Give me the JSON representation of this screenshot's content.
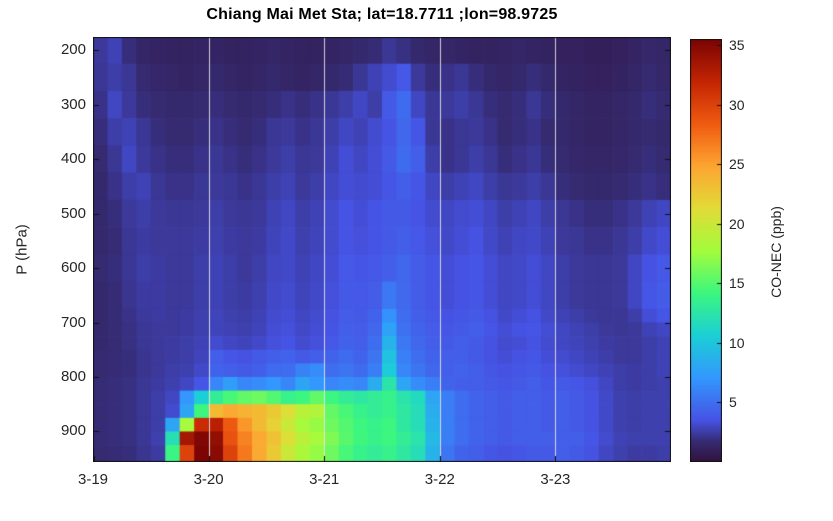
{
  "title": "Chiang Mai Met Sta; lat=18.7711 ;lon=98.9725",
  "colors": {
    "background": "#ffffff",
    "axis_box": "#111111",
    "tick_text": "#262626",
    "title_text": "#000000",
    "gridline": "rgba(228,228,228,0.9)"
  },
  "chart_data": {
    "type": "heatmap",
    "title": "Chiang Mai Met Sta; lat=18.7711 ;lon=98.9725",
    "xlabel": "",
    "ylabel": "P (hPa)",
    "colorbar_label": "CO-NEC (ppb)",
    "x_tick_labels": [
      "3-19",
      "3-20",
      "3-21",
      "3-22",
      "3-23"
    ],
    "x_cols_per_day": 8,
    "x_gridline_days": [
      1,
      2,
      3,
      4
    ],
    "y_ticks": [
      200,
      300,
      400,
      500,
      600,
      700,
      800,
      900
    ],
    "p_top": 176,
    "p_bottom": 956,
    "clim": [
      0,
      35.5
    ],
    "colorbar_ticks": [
      5,
      10,
      15,
      20,
      25,
      30,
      35
    ],
    "colormap": "turbo",
    "colormap_stops": [
      [
        0.0,
        48,
        18,
        59
      ],
      [
        0.05,
        54,
        43,
        115
      ],
      [
        0.1,
        70,
        83,
        229
      ],
      [
        0.2,
        51,
        151,
        254
      ],
      [
        0.3,
        27,
        208,
        213
      ],
      [
        0.4,
        60,
        246,
        127
      ],
      [
        0.5,
        163,
        252,
        60
      ],
      [
        0.6,
        225,
        220,
        55
      ],
      [
        0.7,
        253,
        165,
        49
      ],
      [
        0.8,
        239,
        91,
        17
      ],
      [
        0.9,
        196,
        37,
        3
      ],
      [
        1.0,
        122,
        4,
        3
      ]
    ],
    "row_edges_hpa": [
      176,
      225,
      275,
      325,
      375,
      425,
      475,
      525,
      575,
      625,
      675,
      700,
      725,
      750,
      775,
      800,
      825,
      850,
      875,
      900,
      925,
      956
    ],
    "values": [
      [
        2.4,
        2.8,
        1.9,
        1.4,
        1.3,
        1.2,
        1.2,
        1.3,
        1.3,
        1.2,
        1.2,
        1.3,
        1.4,
        1.3,
        1.2,
        1.2,
        1.3,
        1.4,
        1.6,
        1.8,
        2.3,
        2.0,
        1.6,
        1.4,
        1.4,
        1.3,
        1.2,
        1.2,
        1.3,
        1.4,
        1.3,
        1.2,
        1.1,
        1.1,
        1.0,
        1.0,
        1.1,
        1.3,
        1.5,
        1.4
      ],
      [
        2.3,
        2.6,
        2.3,
        1.7,
        1.5,
        1.4,
        1.3,
        1.4,
        1.6,
        1.4,
        1.3,
        1.4,
        1.6,
        1.4,
        1.3,
        1.4,
        1.6,
        1.8,
        2.3,
        2.8,
        3.2,
        3.8,
        2.4,
        1.9,
        2.1,
        2.3,
        1.9,
        1.6,
        1.4,
        1.6,
        1.9,
        1.6,
        1.3,
        1.2,
        1.1,
        1.1,
        1.2,
        1.4,
        1.7,
        1.5
      ],
      [
        2.1,
        3.0,
        2.4,
        1.9,
        1.7,
        1.6,
        1.6,
        1.7,
        1.9,
        1.7,
        1.6,
        1.7,
        1.9,
        2.1,
        1.9,
        2.1,
        2.3,
        2.6,
        3.0,
        2.6,
        3.9,
        4.8,
        3.0,
        2.3,
        2.4,
        2.6,
        2.3,
        1.9,
        1.7,
        1.9,
        2.3,
        1.9,
        1.6,
        1.4,
        1.3,
        1.3,
        1.4,
        1.6,
        1.9,
        1.7
      ],
      [
        1.9,
        2.6,
        2.8,
        2.3,
        1.9,
        1.7,
        1.7,
        1.9,
        2.1,
        1.9,
        1.7,
        1.9,
        2.3,
        2.4,
        2.1,
        2.3,
        2.6,
        3.0,
        2.8,
        3.2,
        3.6,
        4.6,
        3.7,
        2.3,
        2.1,
        2.3,
        2.4,
        2.1,
        1.7,
        1.9,
        2.1,
        1.7,
        1.6,
        1.4,
        1.3,
        1.3,
        1.4,
        1.6,
        1.7,
        1.6
      ],
      [
        1.7,
        2.3,
        3.0,
        2.4,
        2.1,
        1.9,
        1.9,
        2.1,
        2.3,
        2.1,
        1.9,
        2.1,
        2.4,
        2.6,
        2.3,
        2.4,
        2.8,
        3.3,
        3.0,
        3.3,
        3.9,
        4.8,
        4.1,
        2.6,
        2.1,
        2.3,
        2.6,
        2.3,
        1.9,
        2.1,
        2.3,
        1.9,
        1.7,
        1.5,
        1.4,
        1.4,
        1.5,
        1.7,
        1.9,
        1.7
      ],
      [
        1.6,
        2.1,
        2.6,
        2.8,
        2.3,
        2.1,
        2.1,
        2.3,
        2.4,
        2.3,
        2.1,
        2.3,
        2.6,
        2.8,
        2.4,
        2.6,
        3.0,
        3.3,
        3.2,
        3.3,
        3.7,
        4.1,
        3.7,
        3.0,
        2.6,
        2.8,
        3.0,
        2.6,
        2.3,
        2.4,
        2.6,
        2.3,
        1.9,
        1.7,
        1.6,
        1.6,
        1.7,
        1.9,
        2.1,
        1.9
      ],
      [
        1.6,
        1.9,
        2.4,
        2.6,
        2.4,
        2.3,
        2.3,
        2.4,
        2.6,
        2.4,
        2.3,
        2.4,
        2.8,
        3.0,
        2.6,
        2.8,
        3.2,
        3.6,
        3.3,
        3.6,
        3.9,
        3.9,
        3.6,
        3.2,
        3.0,
        3.2,
        3.3,
        3.0,
        2.6,
        2.8,
        3.0,
        2.6,
        2.3,
        2.1,
        1.9,
        1.9,
        2.1,
        2.4,
        2.8,
        3.0
      ],
      [
        1.6,
        1.8,
        2.3,
        2.5,
        2.4,
        2.4,
        2.4,
        2.5,
        2.7,
        2.5,
        2.4,
        2.5,
        2.9,
        3.1,
        2.7,
        2.9,
        3.2,
        3.6,
        3.4,
        3.6,
        3.9,
        4.1,
        3.8,
        3.4,
        3.1,
        3.3,
        3.5,
        3.1,
        2.8,
        3.0,
        3.1,
        2.8,
        2.4,
        2.3,
        2.1,
        2.1,
        2.3,
        2.6,
        3.1,
        3.3
      ],
      [
        1.7,
        1.9,
        2.3,
        2.6,
        2.5,
        2.4,
        2.4,
        2.6,
        2.8,
        2.6,
        2.4,
        2.6,
        3.0,
        3.1,
        2.8,
        3.0,
        3.3,
        3.8,
        3.7,
        3.8,
        4.2,
        4.6,
        4.0,
        3.7,
        3.3,
        3.5,
        3.7,
        3.3,
        3.0,
        3.1,
        3.3,
        3.0,
        2.6,
        2.4,
        2.3,
        2.3,
        2.4,
        3.0,
        3.5,
        3.8
      ],
      [
        1.6,
        1.8,
        2.2,
        2.5,
        2.5,
        2.4,
        2.4,
        2.6,
        2.8,
        2.6,
        2.5,
        2.7,
        3.1,
        3.2,
        2.9,
        3.1,
        3.4,
        3.9,
        3.8,
        4.0,
        5.5,
        4.7,
        4.0,
        3.7,
        3.3,
        3.5,
        3.7,
        3.3,
        3.0,
        3.1,
        3.3,
        3.0,
        2.6,
        2.4,
        2.3,
        2.3,
        2.4,
        3.0,
        3.7,
        4.0
      ],
      [
        1.6,
        1.8,
        2.1,
        2.4,
        2.5,
        2.4,
        2.5,
        2.7,
        2.9,
        2.7,
        2.6,
        2.8,
        3.2,
        3.3,
        3.0,
        3.2,
        3.5,
        4.0,
        3.9,
        4.4,
        6.8,
        4.9,
        4.2,
        3.8,
        3.5,
        3.7,
        3.9,
        3.5,
        3.1,
        3.3,
        3.5,
        3.1,
        2.8,
        2.6,
        2.4,
        2.3,
        2.3,
        2.6,
        3.3,
        3.7
      ],
      [
        1.6,
        1.8,
        2.0,
        2.3,
        2.4,
        2.4,
        2.5,
        2.7,
        2.9,
        2.8,
        2.7,
        2.9,
        3.3,
        3.4,
        3.1,
        3.3,
        3.6,
        4.1,
        4.0,
        4.6,
        7.8,
        5.1,
        4.4,
        4.0,
        3.7,
        3.9,
        4.1,
        3.7,
        3.3,
        3.5,
        3.7,
        3.3,
        3.0,
        2.8,
        2.6,
        2.4,
        2.3,
        2.4,
        2.8,
        3.0
      ],
      [
        1.6,
        1.8,
        2.0,
        2.3,
        2.4,
        2.5,
        2.6,
        2.8,
        3.2,
        3.0,
        2.9,
        3.1,
        3.4,
        3.6,
        3.2,
        3.4,
        3.8,
        4.3,
        4.1,
        4.9,
        8.8,
        5.5,
        4.6,
        4.2,
        3.9,
        4.1,
        3.9,
        3.5,
        3.2,
        3.3,
        3.5,
        3.2,
        3.0,
        2.9,
        2.7,
        2.5,
        2.4,
        2.4,
        2.6,
        2.8
      ],
      [
        1.7,
        1.8,
        1.9,
        2.2,
        2.4,
        2.5,
        2.6,
        2.9,
        4.1,
        3.7,
        3.5,
        3.9,
        4.2,
        4.4,
        3.9,
        4.1,
        4.4,
        4.8,
        4.4,
        5.3,
        9.8,
        5.9,
        4.9,
        4.4,
        4.1,
        4.2,
        3.9,
        3.5,
        3.3,
        3.5,
        3.7,
        3.3,
        3.2,
        3.0,
        2.8,
        2.6,
        2.4,
        2.4,
        2.6,
        2.8
      ],
      [
        1.7,
        1.8,
        1.9,
        2.2,
        2.4,
        2.6,
        2.7,
        3.1,
        4.4,
        4.1,
        3.9,
        4.2,
        4.8,
        4.9,
        6.0,
        6.6,
        4.9,
        5.3,
        4.8,
        5.8,
        10.4,
        6.2,
        5.3,
        4.6,
        4.2,
        4.4,
        4.1,
        3.7,
        3.5,
        3.7,
        3.9,
        3.5,
        3.4,
        3.2,
        3.0,
        2.8,
        2.6,
        2.5,
        2.6,
        2.8
      ],
      [
        1.8,
        1.9,
        2.0,
        2.3,
        2.5,
        2.7,
        3.0,
        3.7,
        6.2,
        7.5,
        6.2,
        6.6,
        7.1,
        6.2,
        8.0,
        7.1,
        6.2,
        6.6,
        6.2,
        8.4,
        12.5,
        8.0,
        6.6,
        5.8,
        4.4,
        4.2,
        4.1,
        3.9,
        3.7,
        3.9,
        4.1,
        3.7,
        3.9,
        3.7,
        3.4,
        3.0,
        2.6,
        2.5,
        2.6,
        2.7
      ],
      [
        1.8,
        1.9,
        2.0,
        2.3,
        2.6,
        3.0,
        7.1,
        10.6,
        13.3,
        14.6,
        15.5,
        15.9,
        15.0,
        13.7,
        14.2,
        15.5,
        14.2,
        13.3,
        12.8,
        13.3,
        13.7,
        12.4,
        11.5,
        8.0,
        5.8,
        4.9,
        4.4,
        4.1,
        3.9,
        4.1,
        4.2,
        3.9,
        4.1,
        3.9,
        3.5,
        3.1,
        2.7,
        2.6,
        2.7,
        2.7
      ],
      [
        1.8,
        1.9,
        2.0,
        2.3,
        2.6,
        3.2,
        8.0,
        14.2,
        23.5,
        24.5,
        24.0,
        23.5,
        22.5,
        21.0,
        19.0,
        18.5,
        15.5,
        14.6,
        13.7,
        13.3,
        13.7,
        12.8,
        11.9,
        8.4,
        5.8,
        4.9,
        4.4,
        4.1,
        3.9,
        4.1,
        4.2,
        3.9,
        4.1,
        3.9,
        3.5,
        3.1,
        2.7,
        2.6,
        2.7,
        2.7
      ],
      [
        1.8,
        1.9,
        2.0,
        2.3,
        2.6,
        8.0,
        18.0,
        31.5,
        32.5,
        28.5,
        25.5,
        23.5,
        22.0,
        20.0,
        18.0,
        17.3,
        15.9,
        15.0,
        14.2,
        13.7,
        14.2,
        12.8,
        11.9,
        8.8,
        5.8,
        4.9,
        4.4,
        4.1,
        3.9,
        4.1,
        4.2,
        3.9,
        4.1,
        3.9,
        3.5,
        3.1,
        2.7,
        2.6,
        2.7,
        2.7
      ],
      [
        1.8,
        1.9,
        2.0,
        2.3,
        2.7,
        12.0,
        33.5,
        35.2,
        34.3,
        29.0,
        26.5,
        24.5,
        23.0,
        21.0,
        19.0,
        18.0,
        16.5,
        15.2,
        14.3,
        13.8,
        14.2,
        13.3,
        12.4,
        9.3,
        5.8,
        4.9,
        4.4,
        4.1,
        3.9,
        4.1,
        4.2,
        4.1,
        4.2,
        4.1,
        3.7,
        3.2,
        2.8,
        2.7,
        2.7,
        2.7
      ],
      [
        1.7,
        1.8,
        1.9,
        2.2,
        2.5,
        14.0,
        30.0,
        35.4,
        34.8,
        30.0,
        27.0,
        24.5,
        22.5,
        20.0,
        18.2,
        17.3,
        15.9,
        14.6,
        13.7,
        13.3,
        13.7,
        12.8,
        11.9,
        8.8,
        5.3,
        4.4,
        4.1,
        3.7,
        3.5,
        3.7,
        3.9,
        3.9,
        4.1,
        3.9,
        3.5,
        3.0,
        2.7,
        2.5,
        2.5,
        2.6
      ]
    ]
  }
}
